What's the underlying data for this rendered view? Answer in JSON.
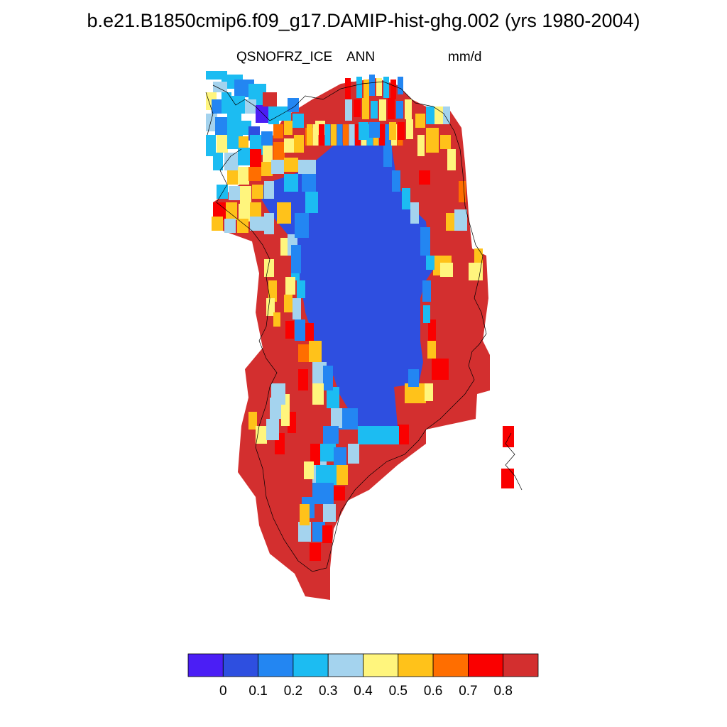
{
  "title": "b.e21.B1850cmip6.f09_g17.DAMIP-hist-ghg.002 (yrs 1980-2004)",
  "variable": "QSNOFRZ_ICE",
  "season": "ANN",
  "units": "mm/d",
  "colorbar": {
    "colors": [
      "#4B1EF5",
      "#2E4FE0",
      "#2386F2",
      "#1CBCF2",
      "#A4D3EE",
      "#FFF57D",
      "#FFC21A",
      "#FF6E00",
      "#FA0000",
      "#D32F2F"
    ],
    "labels": [
      "0",
      "0.1",
      "0.2",
      "0.3",
      "0.4",
      "0.5",
      "0.6",
      "0.7",
      "0.8"
    ]
  }
}
